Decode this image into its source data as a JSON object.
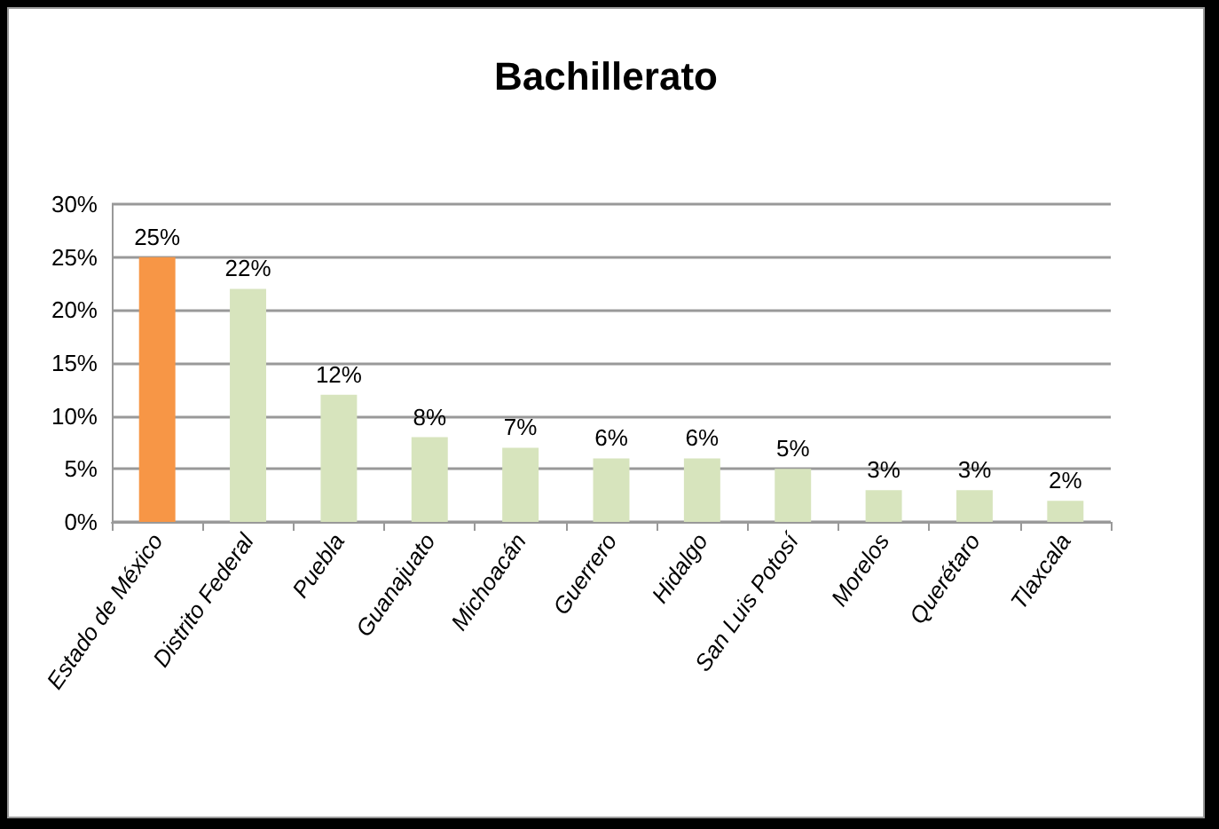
{
  "chart_data": {
    "type": "bar",
    "title": "Bachillerato",
    "categories": [
      "Estado de México",
      "Distrito Federal",
      "Puebla",
      "Guanajuato",
      "Michoacán",
      "Guerrero",
      "Hidalgo",
      "San Luis Potosí",
      "Morelos",
      "Querétaro",
      "Tlaxcala"
    ],
    "values": [
      25,
      22,
      12,
      8,
      7,
      6,
      6,
      5,
      3,
      3,
      2
    ],
    "value_labels": [
      "25%",
      "22%",
      "12%",
      "8%",
      "7%",
      "6%",
      "6%",
      "5%",
      "3%",
      "3%",
      "2%"
    ],
    "colors": [
      "#f79646",
      "#d7e4bd",
      "#d7e4bd",
      "#d7e4bd",
      "#d7e4bd",
      "#d7e4bd",
      "#d7e4bd",
      "#d7e4bd",
      "#d7e4bd",
      "#d7e4bd",
      "#d7e4bd"
    ],
    "ylim": [
      0,
      30
    ],
    "yticks": [
      {
        "value": 0,
        "label": "0%"
      },
      {
        "value": 5,
        "label": "5%"
      },
      {
        "value": 10,
        "label": "10%"
      },
      {
        "value": 15,
        "label": "15%"
      },
      {
        "value": 20,
        "label": "20%"
      },
      {
        "value": 25,
        "label": "25%"
      },
      {
        "value": 30,
        "label": "30%"
      }
    ],
    "grid": "y"
  }
}
